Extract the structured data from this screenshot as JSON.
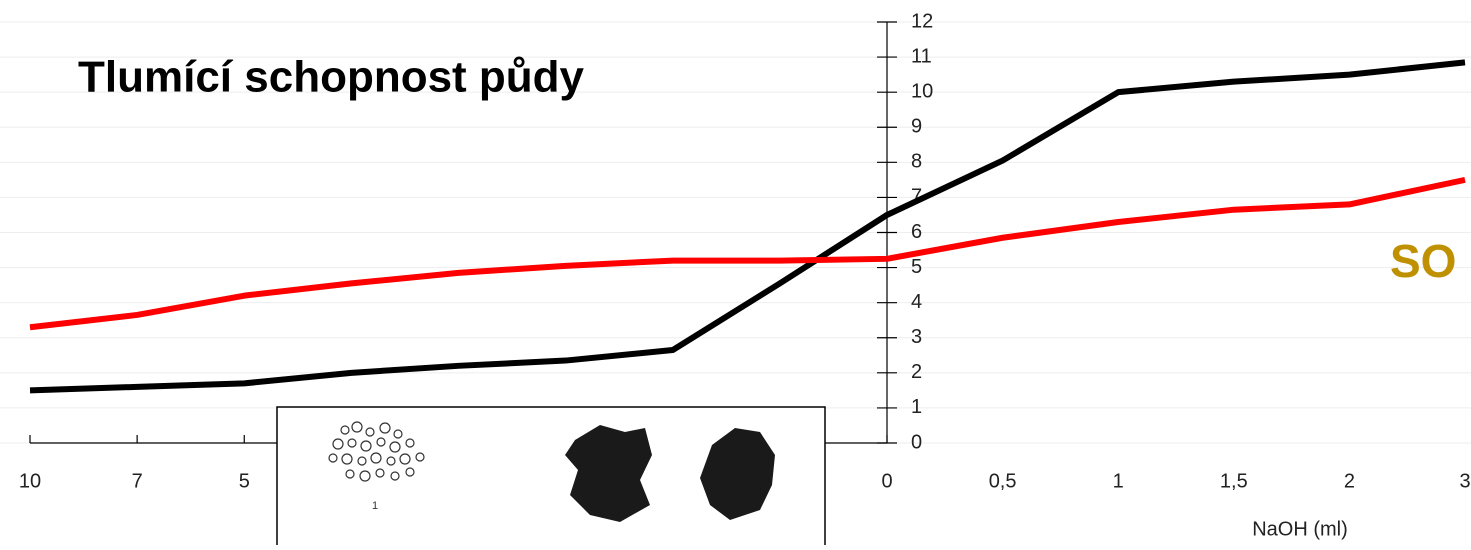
{
  "chart_data": {
    "type": "line",
    "title": "Tlumící schopnost půdy",
    "x_label": "NaOH (ml)",
    "annotation": "SO",
    "image_caption": "1",
    "categories": [
      "10",
      "7",
      "5",
      null,
      null,
      null,
      null,
      null,
      "0",
      "0,5",
      "1",
      "1,5",
      "2",
      "3"
    ],
    "series": [
      {
        "name": null,
        "color": "#000000",
        "values": [
          1.5,
          1.6,
          1.7,
          2.0,
          2.2,
          2.35,
          2.65,
          4.55,
          6.5,
          8.05,
          10.0,
          10.3,
          10.5,
          10.85
        ]
      },
      {
        "name": null,
        "color": "#ff0000",
        "values": [
          3.3,
          3.65,
          4.2,
          4.55,
          4.85,
          5.05,
          5.2,
          5.2,
          5.25,
          5.85,
          6.3,
          6.65,
          6.8,
          7.5
        ]
      }
    ],
    "ylim": [
      0,
      12
    ],
    "yticks": [
      0,
      1,
      2,
      3,
      4,
      5,
      6,
      7,
      8,
      9,
      10,
      11,
      12
    ],
    "grid": true
  }
}
